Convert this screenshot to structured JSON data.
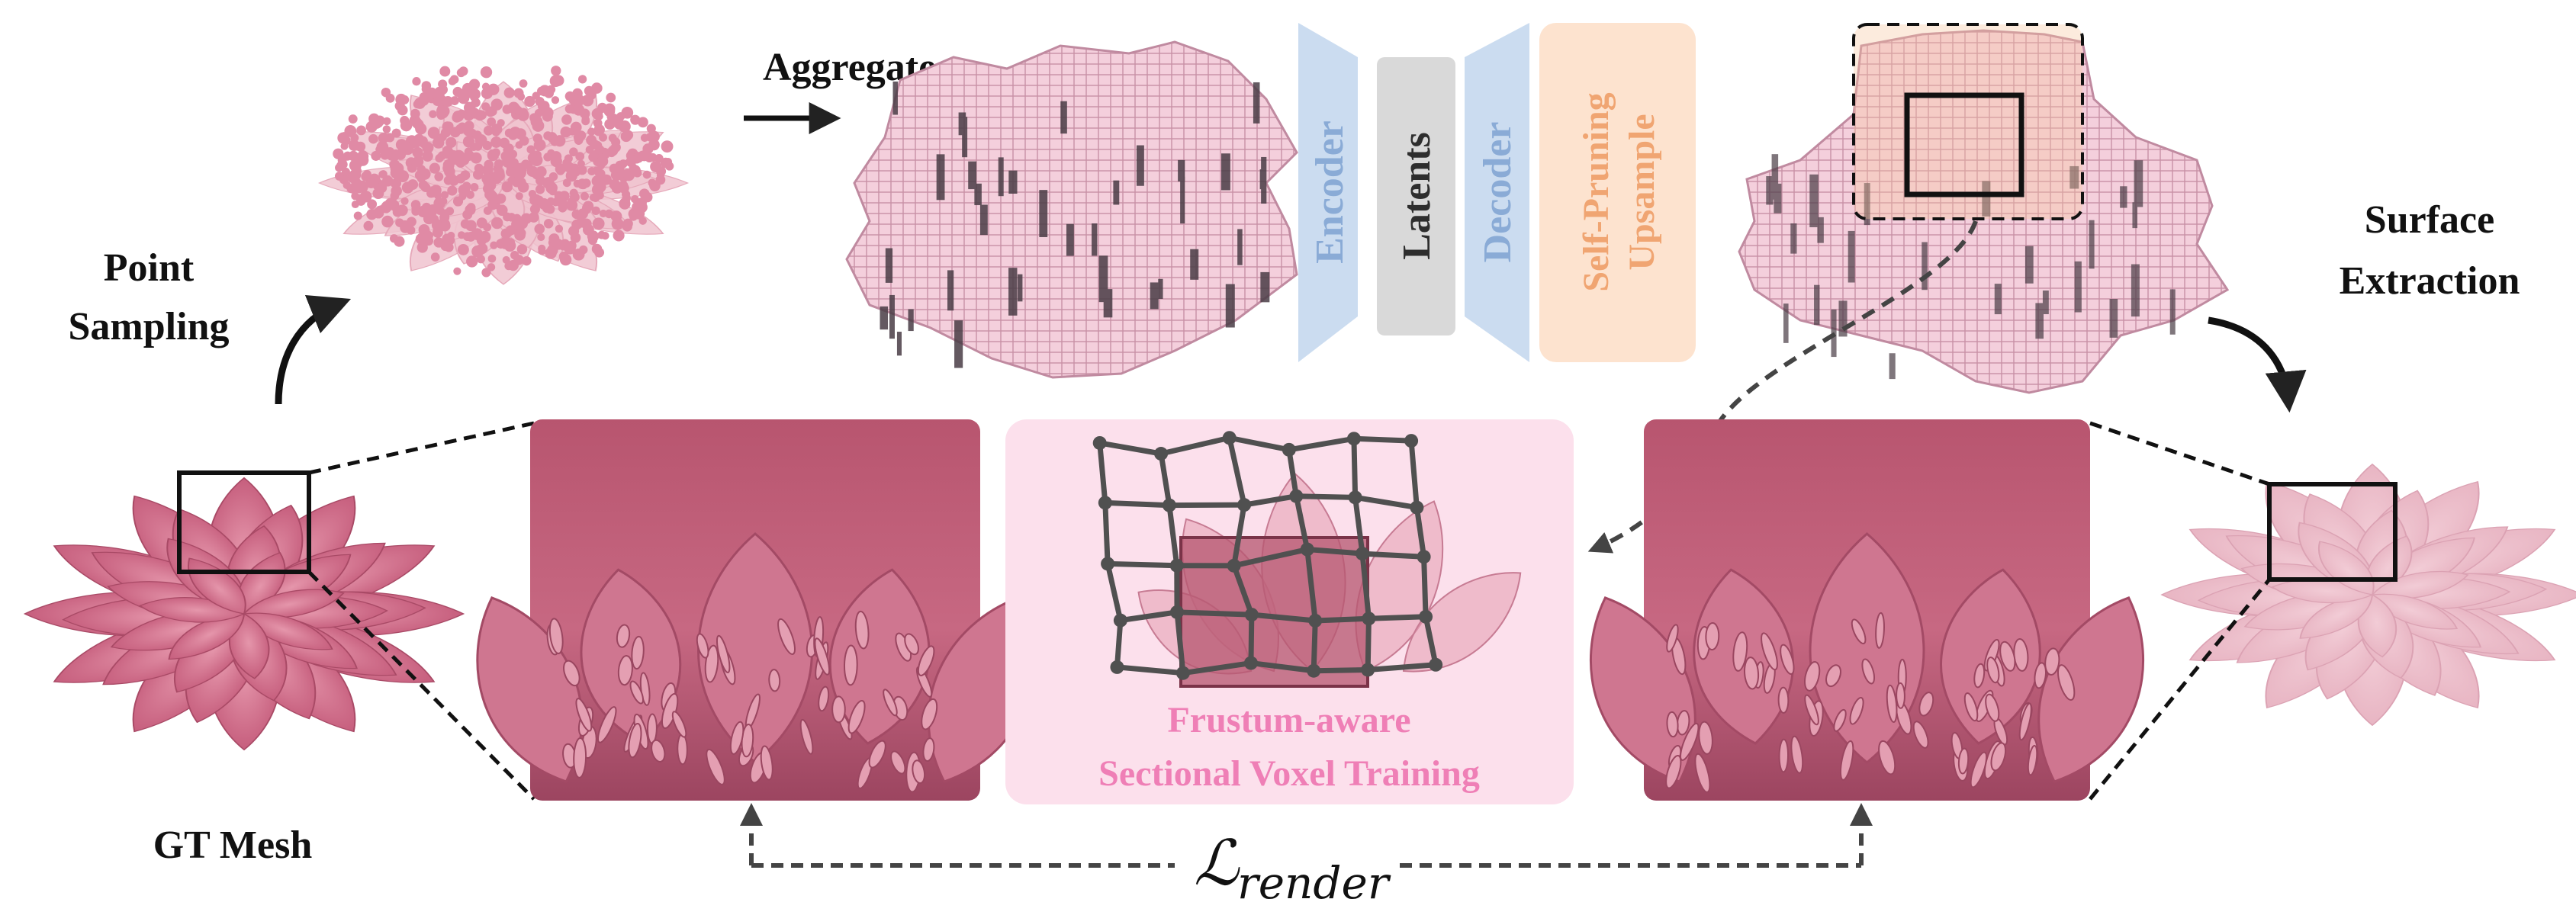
{
  "labels": {
    "aggregate": "Aggregate",
    "point_sampling_line1": "Point",
    "point_sampling_line2": "Sampling",
    "surface_extraction_line1": "Surface",
    "surface_extraction_line2": "Extraction",
    "gt_mesh": "GT Mesh",
    "frustum_line1": "Frustum-aware",
    "frustum_line2": "Sectional Voxel Training",
    "loss_symbol": "ℒ",
    "loss_subscript": "render"
  },
  "network": {
    "encoder": "Encoder",
    "latents": "Latents",
    "decoder": "Decoder",
    "upsample_line1": "Self-Pruning",
    "upsample_line2": "Upsample"
  },
  "colors": {
    "flower_dark": "#c05a78",
    "flower_mid": "#d4768f",
    "flower_light": "#f0c4d0",
    "flower_pale": "#f6dbe2",
    "voxel_top": "#f2c9d6",
    "voxel_side": "#d8a0b4",
    "voxel_shadow": "#5a4a55",
    "encoder_fill": "#cbdcf0",
    "encoder_text": "#8aabd6",
    "latents_fill": "#d9d9d9",
    "latents_text": "#2e2e2e",
    "upsample_fill": "#fde3cf",
    "upsample_text": "#f0a572",
    "frustum_bg": "#fce0ec",
    "frustum_text": "#ef7fb6",
    "grid": "#505050",
    "arrow": "#222222"
  }
}
